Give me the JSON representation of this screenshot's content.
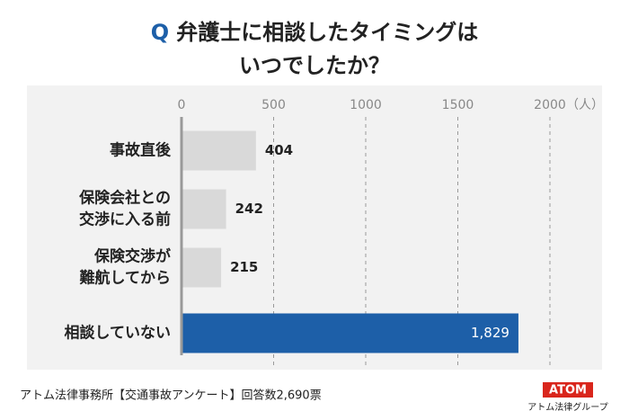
{
  "chart_data": {
    "type": "hbar",
    "title_marker": "Q",
    "title": [
      "弁護士に相談したタイミングは",
      "いつでしたか？"
    ],
    "categories": [
      [
        "事故直後"
      ],
      [
        "保険会社との",
        "交渉に入る前"
      ],
      [
        "保険交渉が",
        "難航してから"
      ],
      [
        "相談していない"
      ]
    ],
    "values": [
      404,
      242,
      215,
      1829
    ],
    "value_labels": [
      "404",
      "242",
      "215",
      "1,829"
    ],
    "colors": [
      "#d9d9d9",
      "#d9d9d9",
      "#d9d9d9",
      "#1d5fa8"
    ],
    "xlim": [
      0,
      2000
    ],
    "xticks": [
      0,
      500,
      1000,
      1500,
      2000
    ],
    "x_unit": "（人）",
    "grid": true,
    "source": "アトム法律事務所【交通事故アンケート】回答数2,690票",
    "logo": "ATOM",
    "logo_caption": "アトム法律グループ"
  }
}
